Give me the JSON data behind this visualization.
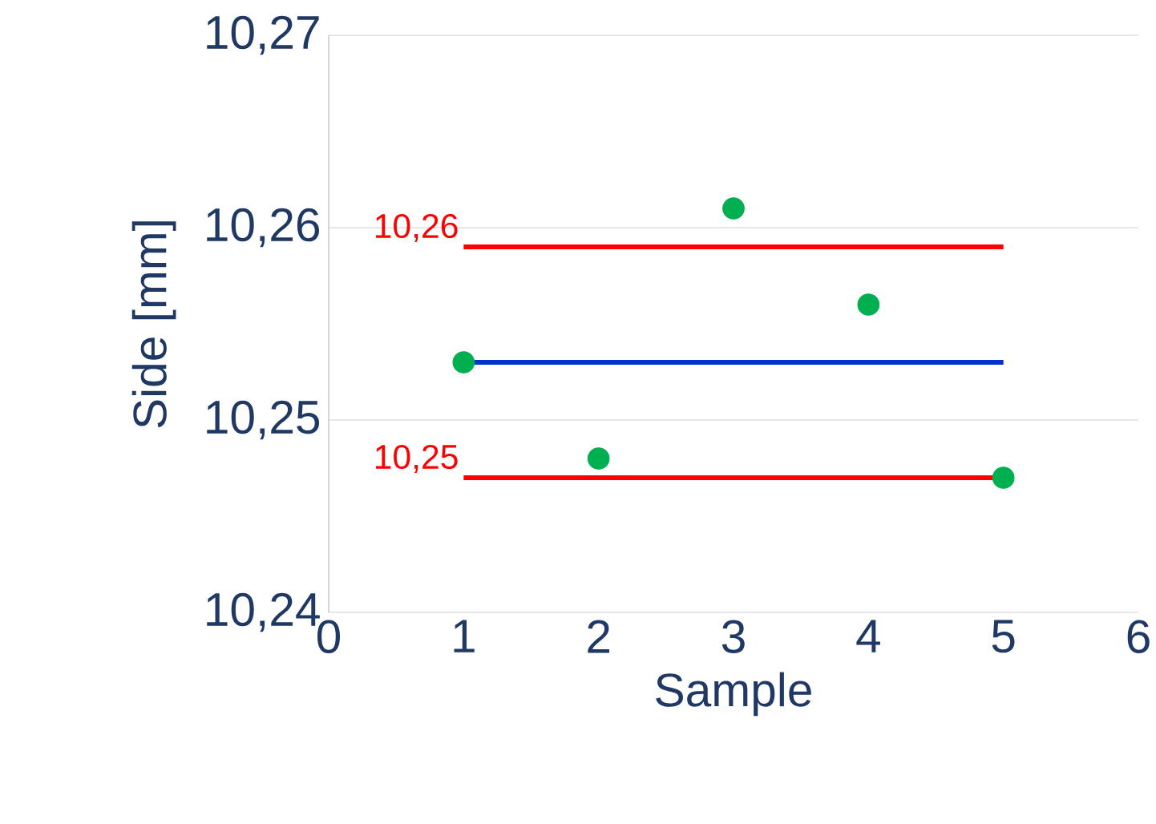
{
  "chart_data": {
    "type": "scatter",
    "xlabel": "Sample",
    "ylabel": "Side [mm]",
    "xlim": [
      0,
      6
    ],
    "xticks": [
      0,
      1,
      2,
      3,
      4,
      5,
      6
    ],
    "ylim": [
      10.24,
      10.27
    ],
    "yticks": [
      {
        "value": 10.24,
        "label": "10,24"
      },
      {
        "value": 10.25,
        "label": "10,25"
      },
      {
        "value": 10.26,
        "label": "10,26"
      },
      {
        "value": 10.27,
        "label": "10,27"
      }
    ],
    "grid": "y",
    "series": [
      {
        "type": "line",
        "color": "#ff0000",
        "x": [
          1,
          5
        ],
        "values": [
          10.259,
          10.259
        ]
      },
      {
        "type": "line",
        "color": "#0033cc",
        "x": [
          1,
          5
        ],
        "values": [
          10.253,
          10.253
        ]
      },
      {
        "type": "line",
        "color": "#ff0000",
        "x": [
          1,
          5
        ],
        "values": [
          10.247,
          10.247
        ]
      },
      {
        "color": "#00b050",
        "marker": "circle",
        "x": [
          1,
          2,
          3,
          4,
          5
        ],
        "values": [
          10.253,
          10.248,
          10.261,
          10.256,
          10.247
        ]
      }
    ],
    "annotations": [
      {
        "text": "10,26",
        "x": 1,
        "y": 10.259
      },
      {
        "text": "10,25",
        "x": 1,
        "y": 10.247
      }
    ]
  }
}
